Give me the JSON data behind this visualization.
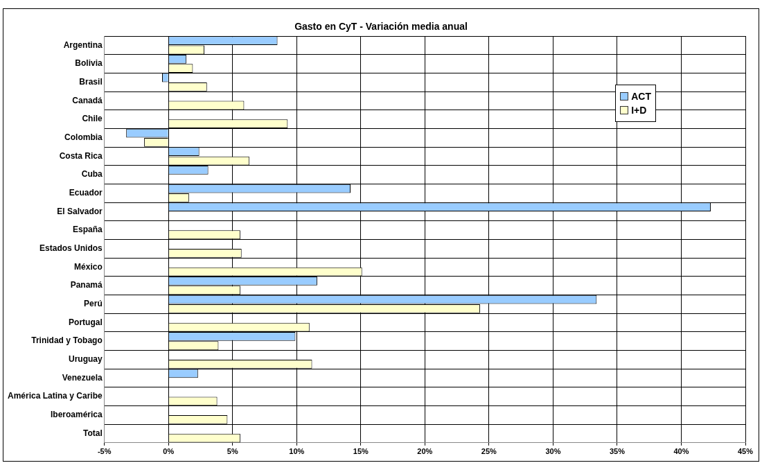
{
  "chart_data": {
    "type": "bar",
    "orientation": "horizontal",
    "title": "Gasto en CyT - Variación media anual",
    "categories": [
      "Argentina",
      "Bolivia",
      "Brasil",
      "Canadá",
      "Chile",
      "Colombia",
      "Costa Rica",
      "Cuba",
      "Ecuador",
      "El Salvador",
      "España",
      "Estados Unidos",
      "México",
      "Panamá",
      "Perú",
      "Portugal",
      "Trinidad y Tobago",
      "Uruguay",
      "Venezuela",
      "América Latina y Caribe",
      "Iberoamérica",
      "Total"
    ],
    "series": [
      {
        "name": "ACT",
        "color": "#99ccff",
        "values": [
          8.5,
          1.4,
          -0.5,
          null,
          null,
          -3.3,
          2.4,
          3.1,
          14.2,
          42.3,
          null,
          null,
          null,
          11.6,
          33.4,
          null,
          9.9,
          null,
          2.3,
          null,
          null,
          null
        ]
      },
      {
        "name": "I+D",
        "color": "#ffffcc",
        "values": [
          2.8,
          1.9,
          3.0,
          5.9,
          9.3,
          -1.9,
          6.3,
          0,
          1.6,
          null,
          5.6,
          5.7,
          15.1,
          5.6,
          24.3,
          11.0,
          3.9,
          11.2,
          null,
          3.8,
          4.6,
          5.6
        ]
      }
    ],
    "xlim": [
      -5,
      45
    ],
    "xticks": [
      {
        "value": -5,
        "label": "-5%"
      },
      {
        "value": 0,
        "label": "0%"
      },
      {
        "value": 5,
        "label": "5%"
      },
      {
        "value": 10,
        "label": "10%"
      },
      {
        "value": 15,
        "label": "15%"
      },
      {
        "value": 20,
        "label": "20%"
      },
      {
        "value": 25,
        "label": "25%"
      },
      {
        "value": 30,
        "label": "30%"
      },
      {
        "value": 35,
        "label": "35%"
      },
      {
        "value": 40,
        "label": "40%"
      },
      {
        "value": 45,
        "label": "45%"
      }
    ],
    "grid": true,
    "legend": "top right"
  }
}
